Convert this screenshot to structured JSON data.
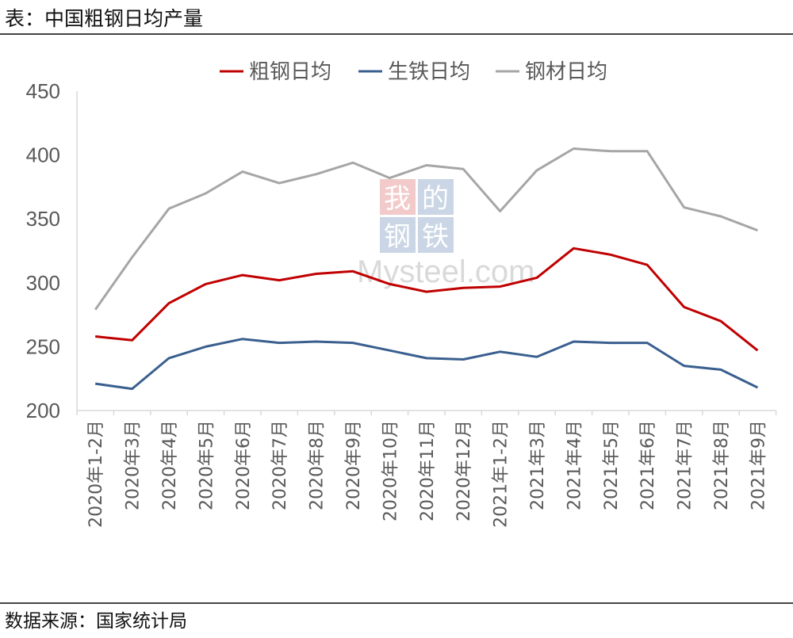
{
  "title": "表：中国粗钢日均产量",
  "source": "数据来源：国家统计局",
  "watermark": {
    "chars": [
      "我",
      "的",
      "钢",
      "铁"
    ],
    "text": "Mysteel.com"
  },
  "chart_data": {
    "type": "line",
    "title": "",
    "xlabel": "",
    "ylabel": "",
    "ylim": [
      200,
      450
    ],
    "yticks": [
      200,
      250,
      300,
      350,
      400,
      450
    ],
    "grid": false,
    "legend": "top",
    "categories": [
      "2020年1-2月",
      "2020年3月",
      "2020年4月",
      "2020年5月",
      "2020年6月",
      "2020年7月",
      "2020年8月",
      "2020年9月",
      "2020年10月",
      "2020年11月",
      "2020年12月",
      "2021年1-2月",
      "2021年3月",
      "2021年4月",
      "2021年5月",
      "2021年6月",
      "2021年7月",
      "2021年8月",
      "2021年9月"
    ],
    "series": [
      {
        "name": "粗钢日均",
        "color": "#C00000",
        "values": [
          258,
          255,
          284,
          299,
          306,
          302,
          307,
          309,
          299,
          293,
          296,
          297,
          304,
          327,
          322,
          314,
          281,
          270,
          247
        ]
      },
      {
        "name": "生铁日均",
        "color": "#3A5F8F",
        "values": [
          221,
          217,
          241,
          250,
          256,
          253,
          254,
          253,
          247,
          241,
          240,
          246,
          242,
          254,
          253,
          253,
          235,
          232,
          218
        ]
      },
      {
        "name": "钢材日均",
        "color": "#A6A6A6",
        "values": [
          279,
          320,
          358,
          370,
          387,
          378,
          385,
          394,
          382,
          392,
          389,
          356,
          388,
          405,
          403,
          403,
          359,
          352,
          341
        ]
      }
    ]
  }
}
